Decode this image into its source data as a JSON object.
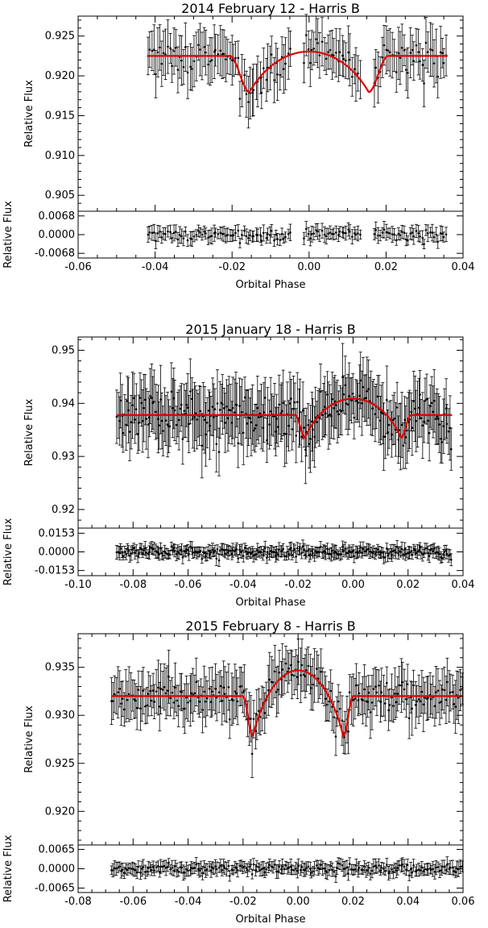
{
  "chart_data": [
    {
      "type": "scatter",
      "title": "2014 February 12 - Harris B",
      "xlabel": "Orbital Phase",
      "ylabel": "Relative Flux",
      "residual_ylabel": "Relative Flux",
      "xlim": [
        -0.06,
        0.04
      ],
      "xticks": [
        -0.06,
        -0.04,
        -0.02,
        0.0,
        0.02,
        0.04
      ],
      "xtick_labels": [
        "-0.06",
        "-0.04",
        "-0.02",
        "0.00",
        "0.02",
        "0.04"
      ],
      "ylim": [
        0.903,
        0.9275
      ],
      "yticks": [
        0.905,
        0.91,
        0.915,
        0.92,
        0.925
      ],
      "ytick_labels": [
        "0.905",
        "0.910",
        "0.915",
        "0.920",
        "0.925"
      ],
      "residual_ylim": [
        -0.0085,
        0.0085
      ],
      "residual_yticks": [
        -0.0068,
        0.0,
        0.0068
      ],
      "residual_ytick_labels": [
        "-0.0068",
        "0.0000",
        "0.0068"
      ],
      "data_range": [
        -0.042,
        0.036
      ],
      "gaps": [
        [
          -0.0045,
          -0.0015
        ],
        [
          0.0135,
          0.0165
        ]
      ],
      "n_points": 150,
      "baseline": 0.9225,
      "transit_depth": 0.0142,
      "t1": 0.0205,
      "t2": 0.0155,
      "limb_darkening": 0.55,
      "scatter": 0.0017,
      "error_bar": 0.0026,
      "residual_scatter": 0.0017,
      "residual_error": 0.0026,
      "model_color": "#e00000",
      "data_color": "#000000"
    },
    {
      "type": "scatter",
      "title": "2015 January 18 - Harris B",
      "xlabel": "Orbital Phase",
      "ylabel": "Relative Flux",
      "residual_ylabel": "Relative Flux",
      "xlim": [
        -0.1,
        0.04
      ],
      "xticks": [
        -0.1,
        -0.08,
        -0.06,
        -0.04,
        -0.02,
        0.0,
        0.02,
        0.04
      ],
      "xtick_labels": [
        "-0.10",
        "-0.08",
        "-0.06",
        "-0.04",
        "-0.02",
        "0.00",
        "0.02",
        "0.04"
      ],
      "ylim": [
        0.9165,
        0.9525
      ],
      "yticks": [
        0.92,
        0.93,
        0.94,
        0.95
      ],
      "ytick_labels": [
        "0.92",
        "0.93",
        "0.94",
        "0.95"
      ],
      "residual_ylim": [
        -0.0195,
        0.0195
      ],
      "residual_yticks": [
        -0.0153,
        0.0,
        0.0153
      ],
      "residual_ytick_labels": [
        "-0.0153",
        "0.0000",
        "0.0153"
      ],
      "data_range": [
        -0.086,
        0.036
      ],
      "gaps": [],
      "n_points": 260,
      "baseline": 0.9378,
      "transit_depth": 0.0134,
      "t1": 0.021,
      "t2": 0.0175,
      "limb_darkening": 0.55,
      "scatter": 0.0035,
      "error_bar": 0.005,
      "residual_scatter": 0.0035,
      "residual_error": 0.005,
      "model_color": "#e00000",
      "data_color": "#000000"
    },
    {
      "type": "scatter",
      "title": "2015 February 8 - Harris B",
      "xlabel": "Orbital Phase",
      "ylabel": "Relative Flux",
      "residual_ylabel": "Relative Flux",
      "xlim": [
        -0.08,
        0.06
      ],
      "xticks": [
        -0.08,
        -0.06,
        -0.04,
        -0.02,
        0.0,
        0.02,
        0.04,
        0.06
      ],
      "xtick_labels": [
        "-0.08",
        "-0.06",
        "-0.04",
        "-0.02",
        "0.00",
        "0.02",
        "0.04",
        "0.06"
      ],
      "ylim": [
        0.9165,
        0.9385
      ],
      "yticks": [
        0.92,
        0.925,
        0.93,
        0.935
      ],
      "ytick_labels": [
        "0.920",
        "0.925",
        "0.930",
        "0.935"
      ],
      "residual_ylim": [
        -0.008,
        0.008
      ],
      "residual_yticks": [
        -0.0065,
        0.0,
        0.0065
      ],
      "residual_ytick_labels": [
        "-0.0065",
        "0.0000",
        "0.0065"
      ],
      "data_range": [
        -0.068,
        0.06
      ],
      "gaps": [],
      "n_points": 220,
      "baseline": 0.932,
      "transit_depth": 0.0132,
      "t1": 0.02,
      "t2": 0.0165,
      "limb_darkening": 0.55,
      "scatter": 0.0014,
      "error_bar": 0.0022,
      "residual_scatter": 0.0014,
      "residual_error": 0.0022,
      "model_color": "#e00000",
      "data_color": "#000000"
    }
  ]
}
